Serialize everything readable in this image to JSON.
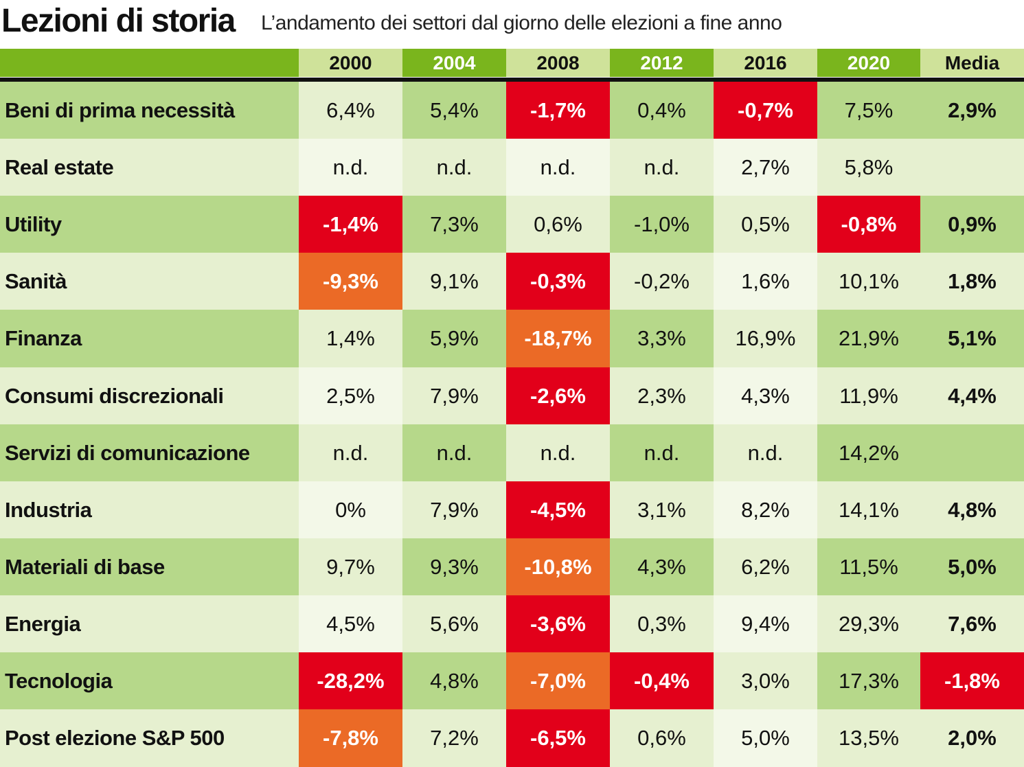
{
  "header": {
    "title": "Lezioni di storia",
    "subtitle": "L’andamento dei settori dal giorno delle elezioni a fine anno"
  },
  "colors": {
    "dark_green": "#7ab51d",
    "light_green": "#b6d88a",
    "pale_green": "#e6f0d0",
    "header_light": "#cfe29a",
    "red": "#e2001a",
    "orange": "#eb6a26"
  },
  "chart_data": {
    "type": "table",
    "title": "Lezioni di storia",
    "subtitle": "L’andamento dei settori dal giorno delle elezioni a fine anno",
    "columns": [
      "2000",
      "2004",
      "2008",
      "2012",
      "2016",
      "2020",
      "Media"
    ],
    "rows": [
      {
        "label": "Beni di prima necessità",
        "values": [
          "6,4%",
          "5,4%",
          "-1,7%",
          "0,4%",
          "-0,7%",
          "7,5%",
          "2,9%"
        ],
        "highlights": [
          null,
          null,
          "red",
          null,
          "red",
          null,
          null
        ]
      },
      {
        "label": "Real estate",
        "values": [
          "n.d.",
          "n.d.",
          "n.d.",
          "n.d.",
          "2,7%",
          "5,8%",
          ""
        ],
        "highlights": [
          null,
          null,
          null,
          null,
          null,
          null,
          null
        ]
      },
      {
        "label": "Utility",
        "values": [
          "-1,4%",
          "7,3%",
          "0,6%",
          "-1,0%",
          "0,5%",
          "-0,8%",
          "0,9%"
        ],
        "highlights": [
          "red",
          null,
          null,
          null,
          null,
          "red",
          null
        ]
      },
      {
        "label": "Sanità",
        "values": [
          "-9,3%",
          "9,1%",
          "-0,3%",
          "-0,2%",
          "1,6%",
          "10,1%",
          "1,8%"
        ],
        "highlights": [
          "orange",
          null,
          "red",
          null,
          null,
          null,
          null
        ]
      },
      {
        "label": "Finanza",
        "values": [
          "1,4%",
          "5,9%",
          "-18,7%",
          "3,3%",
          "16,9%",
          "21,9%",
          "5,1%"
        ],
        "highlights": [
          null,
          null,
          "orange",
          null,
          null,
          null,
          null
        ]
      },
      {
        "label": "Consumi discrezionali",
        "values": [
          "2,5%",
          "7,9%",
          "-2,6%",
          "2,3%",
          "4,3%",
          "11,9%",
          "4,4%"
        ],
        "highlights": [
          null,
          null,
          "red",
          null,
          null,
          null,
          null
        ]
      },
      {
        "label": "Servizi di comunicazione",
        "values": [
          "n.d.",
          "n.d.",
          "n.d.",
          "n.d.",
          "n.d.",
          "14,2%",
          ""
        ],
        "highlights": [
          null,
          null,
          null,
          null,
          null,
          null,
          null
        ]
      },
      {
        "label": "Industria",
        "values": [
          "0%",
          "7,9%",
          "-4,5%",
          "3,1%",
          "8,2%",
          "14,1%",
          "4,8%"
        ],
        "highlights": [
          null,
          null,
          "red",
          null,
          null,
          null,
          null
        ]
      },
      {
        "label": "Materiali di base",
        "values": [
          "9,7%",
          "9,3%",
          "-10,8%",
          "4,3%",
          "6,2%",
          "11,5%",
          "5,0%"
        ],
        "highlights": [
          null,
          null,
          "orange",
          null,
          null,
          null,
          null
        ]
      },
      {
        "label": "Energia",
        "values": [
          "4,5%",
          "5,6%",
          "-3,6%",
          "0,3%",
          "9,4%",
          "29,3%",
          "7,6%"
        ],
        "highlights": [
          null,
          null,
          "red",
          null,
          null,
          null,
          null
        ]
      },
      {
        "label": "Tecnologia",
        "values": [
          "-28,2%",
          "4,8%",
          "-7,0%",
          "-0,4%",
          "3,0%",
          "17,3%",
          "-1,8%"
        ],
        "highlights": [
          "red",
          null,
          "orange",
          "red",
          null,
          null,
          "red"
        ]
      },
      {
        "label": "Post elezione S&P 500",
        "values": [
          "-7,8%",
          "7,2%",
          "-6,5%",
          "0,6%",
          "5,0%",
          "13,5%",
          "2,0%"
        ],
        "highlights": [
          "orange",
          null,
          "red",
          null,
          null,
          null,
          null
        ]
      }
    ]
  }
}
